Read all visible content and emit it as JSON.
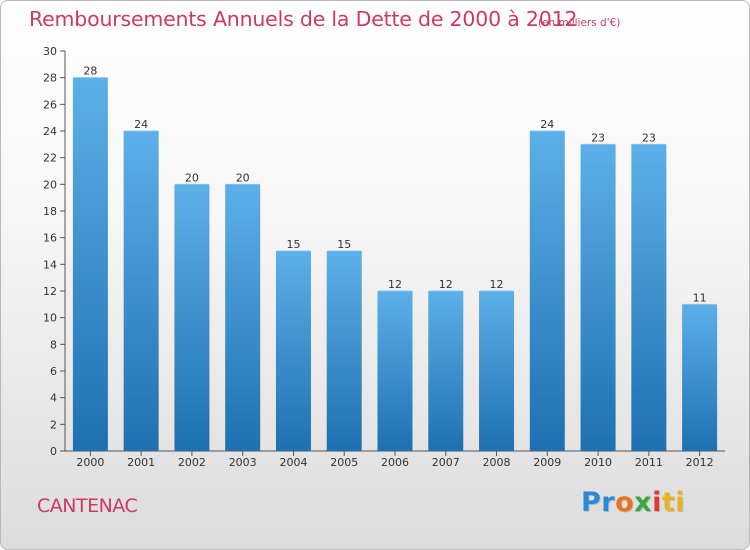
{
  "header": {
    "title": "Remboursements Annuels de la Dette de 2000 à 2012",
    "subtitle": "(en milliers d'€)"
  },
  "commune": "CANTENAC",
  "logo": {
    "parts": [
      "Pr",
      "o",
      "x",
      "i",
      "ti"
    ]
  },
  "colors": {
    "title": "#cc3a61",
    "bar_light": "#5dafe9",
    "bar_dark": "#1f70b0",
    "axis": "#555555"
  },
  "chart_data": {
    "type": "bar",
    "title": "Remboursements Annuels de la Dette de 2000 à 2012",
    "xlabel": "",
    "ylabel": "",
    "categories": [
      "2000",
      "2001",
      "2002",
      "2003",
      "2004",
      "2005",
      "2006",
      "2007",
      "2008",
      "2009",
      "2010",
      "2011",
      "2012"
    ],
    "values": [
      28,
      24,
      20,
      20,
      15,
      15,
      12,
      12,
      12,
      24,
      23,
      23,
      11
    ],
    "ylim": [
      0,
      30
    ],
    "yticks": [
      0,
      2,
      4,
      6,
      8,
      10,
      12,
      14,
      16,
      18,
      20,
      22,
      24,
      26,
      28,
      30
    ],
    "grid": false,
    "data_labels": true
  }
}
